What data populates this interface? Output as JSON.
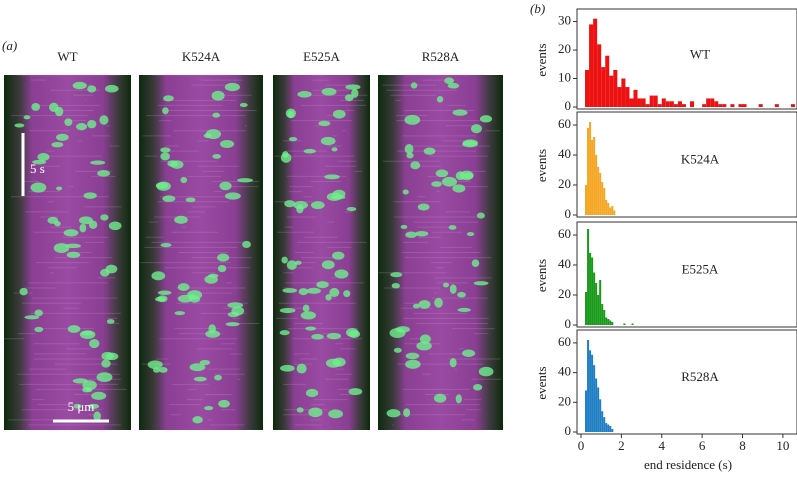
{
  "figure": {
    "panel_a_label": "(a)",
    "panel_b_label": "(b)",
    "kymographs": [
      "WT",
      "K524A",
      "E525A",
      "R528A"
    ],
    "time_scale": "5 s",
    "length_scale": "5 μm"
  },
  "chart_data": [
    {
      "type": "histogram",
      "label": "WT",
      "ylabel": "events",
      "color": "#ee1111",
      "bins": [
        0.2,
        0.4,
        0.6,
        0.8,
        1.0,
        1.2,
        1.4,
        1.6,
        1.8,
        2.0,
        2.2,
        2.4,
        2.6,
        2.8,
        3.0,
        3.2,
        3.4,
        3.6,
        3.8,
        4.0,
        4.2,
        4.4,
        4.6,
        4.8,
        5.0,
        5.2,
        5.4,
        5.6,
        5.8,
        6.0,
        6.2,
        6.4,
        6.6,
        6.8,
        7.0,
        7.2,
        7.4,
        7.6,
        7.8,
        8.0,
        8.2,
        8.4,
        8.6,
        8.8,
        9.0,
        9.2,
        9.4,
        9.6,
        9.8,
        10.0,
        10.2,
        10.4,
        10.6
      ],
      "values": [
        13,
        29,
        31,
        22,
        14,
        18,
        11,
        13,
        7,
        10,
        7,
        3,
        6,
        3,
        3,
        1,
        4,
        4,
        1,
        3,
        2,
        2,
        1,
        2,
        1,
        0,
        2,
        0,
        0,
        1,
        3,
        3,
        2,
        1,
        1,
        0,
        1,
        0,
        1,
        1,
        0,
        0,
        0,
        1,
        0,
        0,
        0,
        1,
        0,
        0,
        0,
        1
      ],
      "xlim": [
        0,
        10.6
      ],
      "ylim": [
        0,
        33
      ],
      "yticks": [
        0,
        10,
        20,
        30
      ]
    },
    {
      "type": "histogram",
      "label": "K524A",
      "ylabel": "events",
      "color": "#f5a623",
      "bins": [
        0.2,
        0.3,
        0.4,
        0.5,
        0.6,
        0.7,
        0.8,
        0.9,
        1.0,
        1.1,
        1.2,
        1.3,
        1.4,
        1.5,
        1.6,
        1.7
      ],
      "values": [
        20,
        58,
        62,
        50,
        52,
        40,
        32,
        28,
        22,
        18,
        10,
        8,
        5,
        6,
        3
      ],
      "xlim": [
        0,
        10.6
      ],
      "ylim": [
        0,
        66
      ],
      "yticks": [
        0,
        20,
        40,
        60
      ]
    },
    {
      "type": "histogram",
      "label": "E525A",
      "ylabel": "events",
      "color": "#1a9a1a",
      "bins": [
        0.2,
        0.3,
        0.4,
        0.5,
        0.6,
        0.7,
        0.8,
        0.9,
        1.0,
        1.1,
        1.2,
        1.3,
        1.4,
        1.5,
        1.6,
        1.7,
        1.8,
        1.9,
        2.0,
        2.1,
        2.2,
        2.3,
        2.4,
        2.5,
        2.6
      ],
      "values": [
        22,
        64,
        48,
        45,
        35,
        28,
        20,
        30,
        14,
        10,
        5,
        4,
        3,
        2,
        0,
        0,
        0,
        0,
        0,
        1,
        0,
        0,
        0,
        1
      ],
      "xlim": [
        0,
        10.6
      ],
      "ylim": [
        0,
        66
      ],
      "yticks": [
        0,
        20,
        40,
        60
      ]
    },
    {
      "type": "histogram",
      "label": "R528A",
      "ylabel": "events",
      "color": "#1f7fc4",
      "bins": [
        0.2,
        0.3,
        0.4,
        0.5,
        0.6,
        0.7,
        0.8,
        0.9,
        1.0,
        1.1,
        1.2,
        1.3,
        1.4,
        1.5,
        1.6
      ],
      "values": [
        28,
        62,
        55,
        52,
        45,
        36,
        30,
        22,
        14,
        10,
        6,
        5,
        4,
        2
      ],
      "xlim": [
        0,
        10.6
      ],
      "ylim": [
        0,
        66
      ],
      "yticks": [
        0,
        20,
        40,
        60
      ],
      "xticks": [
        0,
        2,
        4,
        6,
        8,
        10
      ],
      "xlabel": "end residence (s)"
    }
  ]
}
